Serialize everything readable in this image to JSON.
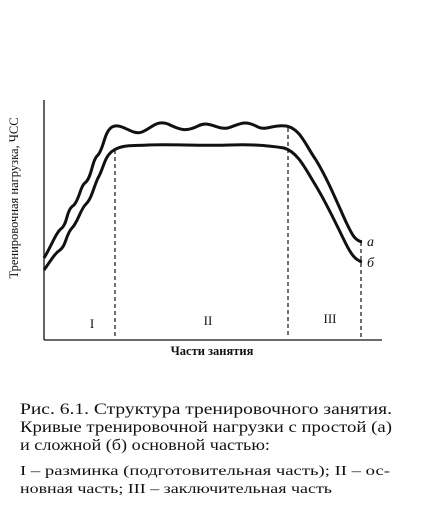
{
  "figure": {
    "y_axis_label": "Тренировочная нагрузка, ЧСС",
    "x_axis_label": "Части занятия",
    "sections": [
      "I",
      "II",
      "III"
    ],
    "curve_labels": [
      "а",
      "б"
    ]
  },
  "caption": {
    "lines": [
      "Рис. 6.1. Структура тренировочного занятия.",
      "Кривые тренировочной нагрузки с простой (а)",
      "и сложной (б) основной частью:"
    ],
    "legend_lines": [
      "I – разминка (подготовительная часть); II – ос-",
      "новная часть; III – заключительная часть"
    ]
  }
}
